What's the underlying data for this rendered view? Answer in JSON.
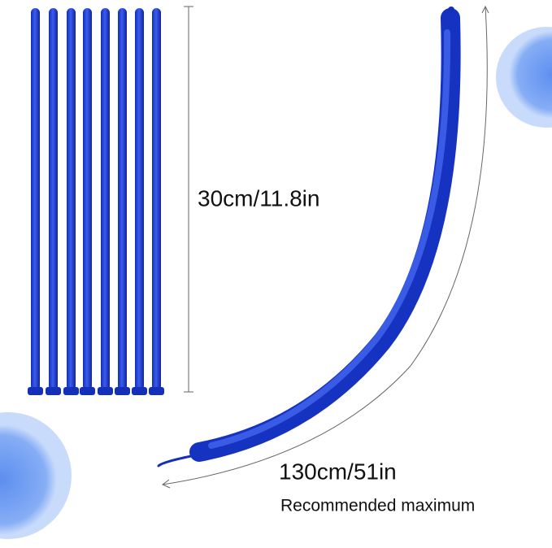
{
  "labels": {
    "short_length": "30cm/11.8in",
    "long_length": "130cm/51in",
    "note": "Recommended maximum"
  }
}
